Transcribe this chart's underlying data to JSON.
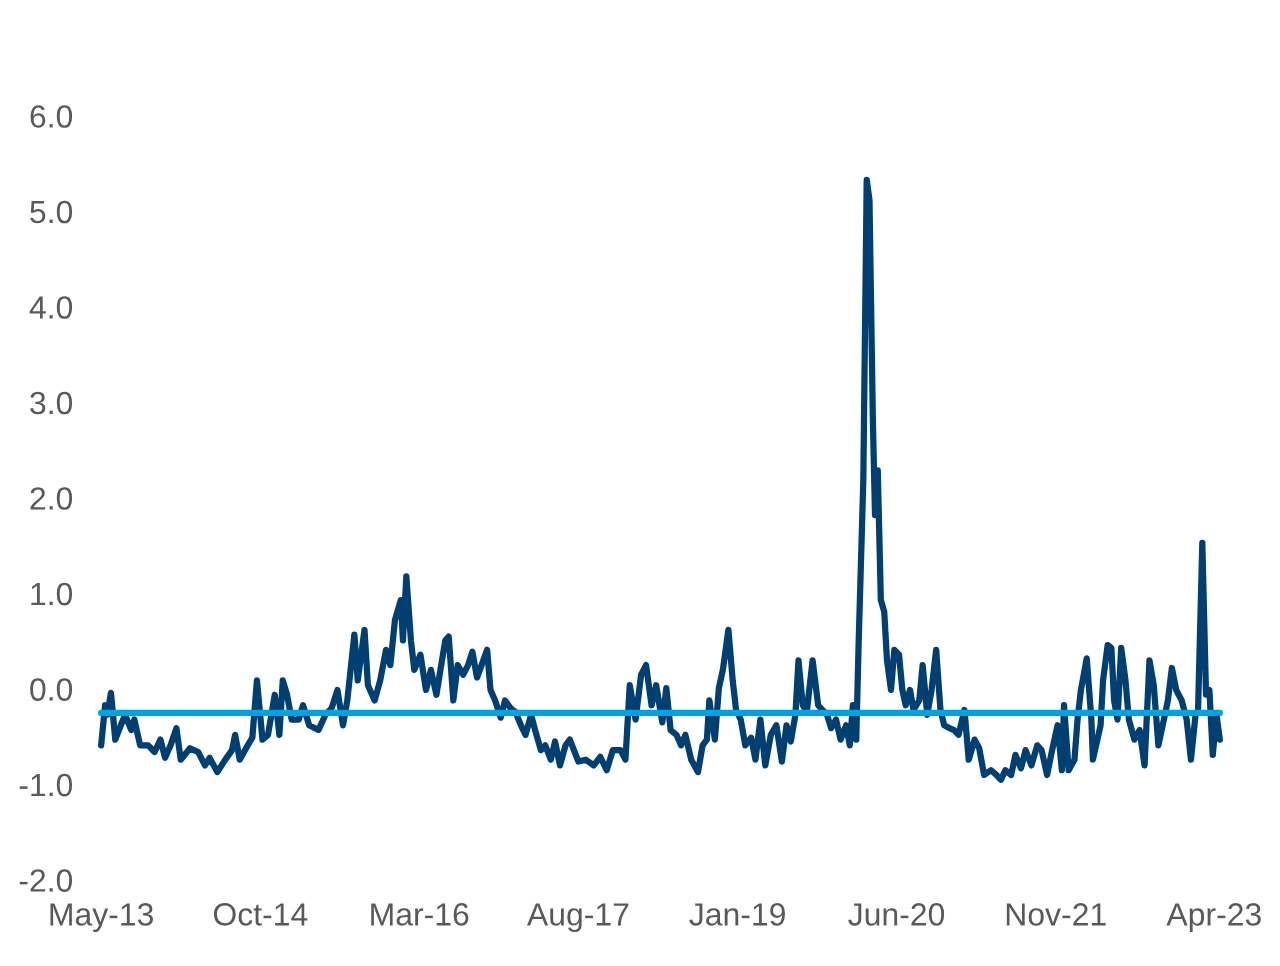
{
  "chart_data": {
    "type": "line",
    "x": [
      "2013-05-01",
      "2013-05-14",
      "2013-05-21",
      "2013-06-02",
      "2013-06-16",
      "2013-07-04",
      "2013-07-18",
      "2013-08-07",
      "2013-08-17",
      "2013-09-05",
      "2013-10-01",
      "2013-10-22",
      "2013-11-10",
      "2013-11-25",
      "2013-12-13",
      "2014-01-01",
      "2014-01-15",
      "2014-02-14",
      "2014-03-13",
      "2014-04-04",
      "2014-04-19",
      "2014-05-14",
      "2014-06-09",
      "2014-07-01",
      "2014-07-11",
      "2014-07-26",
      "2014-08-21",
      "2014-09-05",
      "2014-09-20",
      "2014-10-08",
      "2014-10-26",
      "2014-11-17",
      "2014-12-02",
      "2014-12-13",
      "2014-12-27",
      "2015-01-11",
      "2015-02-03",
      "2015-02-17",
      "2015-03-09",
      "2015-04-08",
      "2015-05-01",
      "2015-05-21",
      "2015-06-09",
      "2015-06-27",
      "2015-07-11",
      "2015-08-03",
      "2015-08-14",
      "2015-09-05",
      "2015-09-16",
      "2015-10-08",
      "2015-10-26",
      "2015-11-14",
      "2015-11-28",
      "2015-12-13",
      "2016-01-01",
      "2016-01-08",
      "2016-01-19",
      "2016-02-03",
      "2016-02-14",
      "2016-03-05",
      "2016-03-23",
      "2016-04-08",
      "2016-04-26",
      "2016-05-10",
      "2016-05-25",
      "2016-06-05",
      "2016-06-20",
      "2016-07-04",
      "2016-07-22",
      "2016-08-07",
      "2016-08-21",
      "2016-09-05",
      "2016-09-20",
      "2016-10-08",
      "2016-10-19",
      "2016-11-03",
      "2016-11-21",
      "2016-12-05",
      "2016-12-23",
      "2017-01-08",
      "2017-01-26",
      "2017-02-10",
      "2017-02-28",
      "2017-03-13",
      "2017-04-01",
      "2017-04-15",
      "2017-05-03",
      "2017-05-17",
      "2017-06-02",
      "2017-06-20",
      "2017-07-04",
      "2017-08-01",
      "2017-08-25",
      "2017-09-20",
      "2017-10-11",
      "2017-11-01",
      "2017-11-21",
      "2017-12-16",
      "2018-01-01",
      "2018-01-15",
      "2018-02-03",
      "2018-02-21",
      "2018-03-09",
      "2018-03-27",
      "2018-04-11",
      "2018-05-01",
      "2018-05-14",
      "2018-05-28",
      "2018-06-16",
      "2018-07-01",
      "2018-07-15",
      "2018-08-03",
      "2018-08-25",
      "2018-09-09",
      "2018-09-23",
      "2018-10-01",
      "2018-10-19",
      "2018-11-01",
      "2018-11-14",
      "2018-12-02",
      "2018-12-16",
      "2018-12-27",
      "2019-01-11",
      "2019-01-26",
      "2019-02-14",
      "2019-02-28",
      "2019-03-16",
      "2019-04-01",
      "2019-04-19",
      "2019-05-07",
      "2019-05-25",
      "2019-06-09",
      "2019-06-23",
      "2019-07-08",
      "2019-07-18",
      "2019-08-01",
      "2019-08-14",
      "2019-09-02",
      "2019-09-20",
      "2019-10-04",
      "2019-10-19",
      "2019-11-01",
      "2019-11-17",
      "2019-12-02",
      "2019-12-20",
      "2020-01-01",
      "2020-01-11",
      "2020-01-22",
      "2020-01-30",
      "2020-02-14",
      "2020-02-25",
      "2020-03-05",
      "2020-03-16",
      "2020-03-23",
      "2020-04-01",
      "2020-04-11",
      "2020-04-22",
      "2020-05-01",
      "2020-05-14",
      "2020-05-25",
      "2020-06-09",
      "2020-06-20",
      "2020-07-01",
      "2020-07-15",
      "2020-07-26",
      "2020-08-14",
      "2020-08-25",
      "2020-09-09",
      "2020-09-23",
      "2020-10-08",
      "2020-10-22",
      "2020-11-03",
      "2020-11-21",
      "2020-12-05",
      "2020-12-20",
      "2021-01-08",
      "2021-01-22",
      "2021-02-10",
      "2021-02-25",
      "2021-03-13",
      "2021-04-04",
      "2021-04-22",
      "2021-05-07",
      "2021-05-21",
      "2021-06-09",
      "2021-06-23",
      "2021-07-11",
      "2021-07-26",
      "2021-08-14",
      "2021-09-02",
      "2021-09-16",
      "2021-10-04",
      "2021-10-19",
      "2021-11-07",
      "2021-11-21",
      "2021-11-28",
      "2021-12-13",
      "2022-01-01",
      "2022-01-11",
      "2022-01-22",
      "2022-02-10",
      "2022-02-25",
      "2022-03-02",
      "2022-03-20",
      "2022-03-27",
      "2022-04-04",
      "2022-04-19",
      "2022-05-01",
      "2022-05-10",
      "2022-05-21",
      "2022-06-02",
      "2022-06-16",
      "2022-06-27",
      "2022-07-15",
      "2022-08-01",
      "2022-08-17",
      "2022-09-02",
      "2022-09-16",
      "2022-10-01",
      "2022-10-19",
      "2022-11-01",
      "2022-11-14",
      "2022-11-28",
      "2022-12-16",
      "2023-01-01",
      "2023-01-15",
      "2023-01-30",
      "2023-02-07",
      "2023-02-21",
      "2023-03-05",
      "2023-03-16",
      "2023-03-27",
      "2023-04-08",
      "2023-04-19"
    ],
    "series": [
      {
        "color": "#003f72",
        "values": [
          -0.59,
          -0.17,
          -0.27,
          -0.04,
          -0.53,
          -0.38,
          -0.27,
          -0.43,
          -0.32,
          -0.59,
          -0.59,
          -0.66,
          -0.53,
          -0.72,
          -0.59,
          -0.41,
          -0.74,
          -0.62,
          -0.66,
          -0.8,
          -0.72,
          -0.87,
          -0.74,
          -0.64,
          -0.48,
          -0.74,
          -0.59,
          -0.51,
          0.09,
          -0.53,
          -0.48,
          -0.06,
          -0.48,
          0.09,
          -0.06,
          -0.32,
          -0.32,
          -0.17,
          -0.38,
          -0.43,
          -0.27,
          -0.2,
          -0.01,
          -0.38,
          -0.12,
          0.57,
          0.09,
          0.62,
          0.04,
          -0.12,
          0.09,
          0.41,
          0.25,
          0.72,
          0.93,
          0.51,
          1.18,
          0.51,
          0.2,
          0.36,
          -0.01,
          0.2,
          -0.06,
          0.22,
          0.51,
          0.55,
          -0.12,
          0.25,
          0.15,
          0.25,
          0.39,
          0.12,
          0.25,
          0.41,
          -0.01,
          -0.12,
          -0.3,
          -0.12,
          -0.2,
          -0.24,
          -0.38,
          -0.48,
          -0.27,
          -0.43,
          -0.64,
          -0.59,
          -0.74,
          -0.55,
          -0.8,
          -0.59,
          -0.53,
          -0.76,
          -0.74,
          -0.8,
          -0.71,
          -0.85,
          -0.64,
          -0.64,
          -0.74,
          0.04,
          -0.32,
          0.15,
          0.25,
          -0.17,
          0.04,
          -0.35,
          0.01,
          -0.43,
          -0.48,
          -0.59,
          -0.48,
          -0.74,
          -0.87,
          -0.59,
          -0.53,
          -0.12,
          -0.53,
          0.01,
          0.2,
          0.62,
          0.09,
          -0.22,
          -0.32,
          -0.59,
          -0.51,
          -0.74,
          -0.32,
          -0.8,
          -0.48,
          -0.38,
          -0.76,
          -0.38,
          -0.55,
          -0.27,
          0.3,
          -0.17,
          -0.24,
          0.3,
          -0.17,
          -0.22,
          -0.27,
          -0.41,
          -0.32,
          -0.53,
          -0.38,
          -0.59,
          -0.17,
          -0.53,
          0.51,
          2.19,
          5.33,
          5.12,
          2.82,
          1.82,
          2.29,
          0.93,
          0.81,
          0.3,
          -0.01,
          0.41,
          0.36,
          -0.01,
          -0.17,
          -0.01,
          -0.22,
          -0.12,
          0.25,
          -0.27,
          -0.01,
          0.41,
          -0.22,
          -0.38,
          -0.41,
          -0.43,
          -0.48,
          -0.22,
          -0.74,
          -0.53,
          -0.62,
          -0.9,
          -0.85,
          -0.9,
          -0.95,
          -0.85,
          -0.9,
          -0.69,
          -0.83,
          -0.64,
          -0.8,
          -0.59,
          -0.64,
          -0.9,
          -0.66,
          -0.38,
          -0.85,
          -0.17,
          -0.85,
          -0.74,
          -0.32,
          -0.01,
          0.32,
          -0.32,
          -0.74,
          -0.48,
          -0.38,
          0.09,
          0.46,
          0.43,
          -0.12,
          -0.32,
          0.43,
          0.09,
          -0.32,
          -0.53,
          -0.43,
          -0.8,
          0.3,
          0.04,
          -0.59,
          -0.32,
          -0.12,
          0.22,
          -0.01,
          -0.12,
          -0.32,
          -0.74,
          -0.27,
          -0.24,
          1.53,
          -0.06,
          -0.01,
          -0.69,
          -0.27,
          -0.53
        ]
      }
    ],
    "xlim": [
      "2013-05-01",
      "2023-04-19"
    ],
    "xticks": [
      {
        "value": "2013-05-01",
        "label": "May-13"
      },
      {
        "value": "2014-10-01",
        "label": "Oct-14"
      },
      {
        "value": "2016-03-01",
        "label": "Mar-16"
      },
      {
        "value": "2017-08-01",
        "label": "Aug-17"
      },
      {
        "value": "2019-01-01",
        "label": "Jan-19"
      },
      {
        "value": "2020-06-01",
        "label": "Jun-20"
      },
      {
        "value": "2021-11-01",
        "label": "Nov-21"
      },
      {
        "value": "2023-04-01",
        "label": "Apr-23"
      }
    ],
    "ylim": [
      -2.0,
      6.0
    ],
    "yticks": [
      {
        "value": -2,
        "label": "-2.0"
      },
      {
        "value": -1,
        "label": "-1.0"
      },
      {
        "value": 0,
        "label": "0.0"
      },
      {
        "value": 1,
        "label": "1.0"
      },
      {
        "value": 2,
        "label": "2.0"
      },
      {
        "value": 3,
        "label": "3.0"
      },
      {
        "value": 4,
        "label": "4.0"
      },
      {
        "value": 5,
        "label": "5.0"
      },
      {
        "value": 6,
        "label": "6.0"
      }
    ],
    "ref_lines": [
      {
        "axis": "y",
        "value": -0.25,
        "color": "#00a3e0",
        "line_style": "solid"
      }
    ],
    "grid": false,
    "legend": false
  }
}
